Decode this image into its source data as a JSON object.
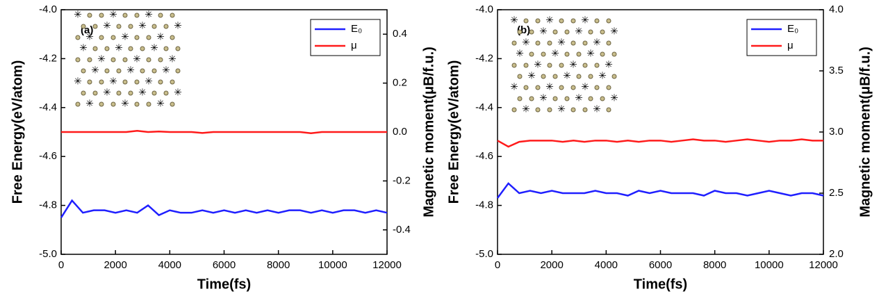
{
  "chart_data": [
    {
      "type": "line",
      "panel_label": "(a)",
      "x_label": "Time(fs)",
      "y_label": "Free Energy(eV/atom)",
      "y2_label": "Magnetic moment(μB/f.u.)",
      "x": [
        0,
        400,
        800,
        1200,
        1600,
        2000,
        2400,
        2800,
        3200,
        3600,
        4000,
        4400,
        4800,
        5200,
        5600,
        6000,
        6400,
        6800,
        7200,
        7600,
        8000,
        8400,
        8800,
        9200,
        9600,
        10000,
        10400,
        10800,
        11200,
        11600,
        12000
      ],
      "series": [
        {
          "name": "E₀",
          "color": "#1f1fff",
          "values": [
            -4.85,
            -4.78,
            -4.83,
            -4.82,
            -4.82,
            -4.83,
            -4.82,
            -4.83,
            -4.8,
            -4.84,
            -4.82,
            -4.83,
            -4.83,
            -4.82,
            -4.83,
            -4.82,
            -4.83,
            -4.82,
            -4.83,
            -4.82,
            -4.83,
            -4.82,
            -4.82,
            -4.83,
            -4.82,
            -4.83,
            -4.82,
            -4.82,
            -4.83,
            -4.82,
            -4.83
          ]
        },
        {
          "name": "μ",
          "color": "#ff1a1a",
          "axis": "y2",
          "values": [
            0,
            0,
            0,
            0,
            0,
            0,
            0,
            0.005,
            0,
            0.002,
            0,
            0,
            0,
            -0.004,
            0,
            0,
            0,
            0,
            0,
            0,
            0,
            0,
            0,
            -0.005,
            0,
            0,
            0,
            0,
            0,
            0,
            0
          ]
        }
      ],
      "xlim": [
        0,
        12000
      ],
      "xticks": [
        0,
        2000,
        4000,
        6000,
        8000,
        10000,
        12000
      ],
      "ylim": [
        -5,
        -4
      ],
      "yticks": [
        {
          "value": -5,
          "label": "-5.0"
        },
        -4.8,
        -4.6,
        -4.4,
        -4.2,
        {
          "value": -4,
          "label": "-4.0"
        }
      ],
      "y2lim": [
        -0.5,
        0.5
      ],
      "y2ticks": [
        -0.4,
        -0.2,
        {
          "value": 0,
          "label": "0.0"
        },
        0.2,
        0.4
      ],
      "legend": "top-right"
    },
    {
      "type": "line",
      "panel_label": "(b)",
      "x_label": "Time(fs)",
      "y_label": "Free Energy(eV/atom)",
      "y2_label": "Magnetic moment(μB/f.u.)",
      "x": [
        0,
        400,
        800,
        1200,
        1600,
        2000,
        2400,
        2800,
        3200,
        3600,
        4000,
        4400,
        4800,
        5200,
        5600,
        6000,
        6400,
        6800,
        7200,
        7600,
        8000,
        8400,
        8800,
        9200,
        9600,
        10000,
        10400,
        10800,
        11200,
        11600,
        12000
      ],
      "series": [
        {
          "name": "E₀",
          "color": "#1f1fff",
          "values": [
            -4.77,
            -4.71,
            -4.75,
            -4.74,
            -4.75,
            -4.74,
            -4.75,
            -4.75,
            -4.75,
            -4.74,
            -4.75,
            -4.75,
            -4.76,
            -4.74,
            -4.75,
            -4.74,
            -4.75,
            -4.75,
            -4.75,
            -4.76,
            -4.74,
            -4.75,
            -4.75,
            -4.76,
            -4.75,
            -4.74,
            -4.75,
            -4.76,
            -4.75,
            -4.75,
            -4.76
          ]
        },
        {
          "name": "μ",
          "color": "#ff1a1a",
          "axis": "y2",
          "values": [
            2.93,
            2.88,
            2.92,
            2.93,
            2.93,
            2.93,
            2.92,
            2.93,
            2.92,
            2.93,
            2.93,
            2.92,
            2.93,
            2.92,
            2.93,
            2.93,
            2.92,
            2.93,
            2.94,
            2.93,
            2.93,
            2.92,
            2.93,
            2.94,
            2.93,
            2.92,
            2.93,
            2.93,
            2.94,
            2.93,
            2.93
          ]
        }
      ],
      "xlim": [
        0,
        12000
      ],
      "xticks": [
        0,
        2000,
        4000,
        6000,
        8000,
        10000,
        12000
      ],
      "ylim": [
        -5,
        -4
      ],
      "yticks": [
        {
          "value": -5,
          "label": "-5.0"
        },
        -4.8,
        -4.6,
        -4.4,
        -4.2,
        {
          "value": -4,
          "label": "-4.0"
        }
      ],
      "y2lim": [
        2,
        4
      ],
      "y2ticks": [
        {
          "value": 2,
          "label": "2.0"
        },
        2.5,
        {
          "value": 3,
          "label": "3.0"
        },
        3.5,
        {
          "value": 4,
          "label": "4.0"
        }
      ],
      "legend": "top-right"
    }
  ]
}
